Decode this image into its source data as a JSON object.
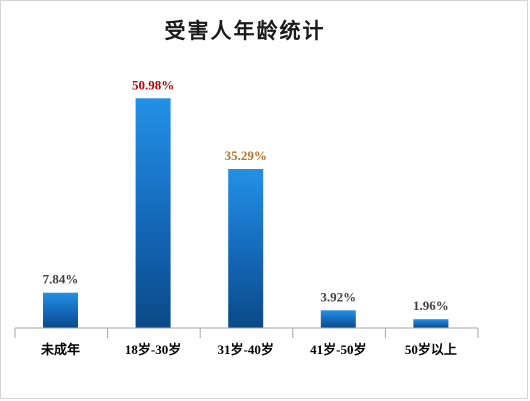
{
  "chart_data": {
    "type": "bar",
    "title": "受害人年龄统计",
    "categories": [
      "未成年",
      "18岁-30岁",
      "31岁-40岁",
      "41岁-50岁",
      "50岁以上"
    ],
    "values": [
      7.84,
      50.98,
      35.29,
      3.92,
      1.96
    ],
    "data_labels": [
      "7.84%",
      "50.98%",
      "35.29%",
      "3.92%",
      "1.96%"
    ],
    "data_label_colors": [
      "#404040",
      "#C00000",
      "#B8732A",
      "#404040",
      "#404040"
    ],
    "bar_color_top": "#2391E6",
    "bar_color_bottom": "#0B4A88",
    "ylim": [
      0,
      60
    ],
    "grid": false,
    "legend": "none",
    "xlabel": "",
    "ylabel": ""
  }
}
